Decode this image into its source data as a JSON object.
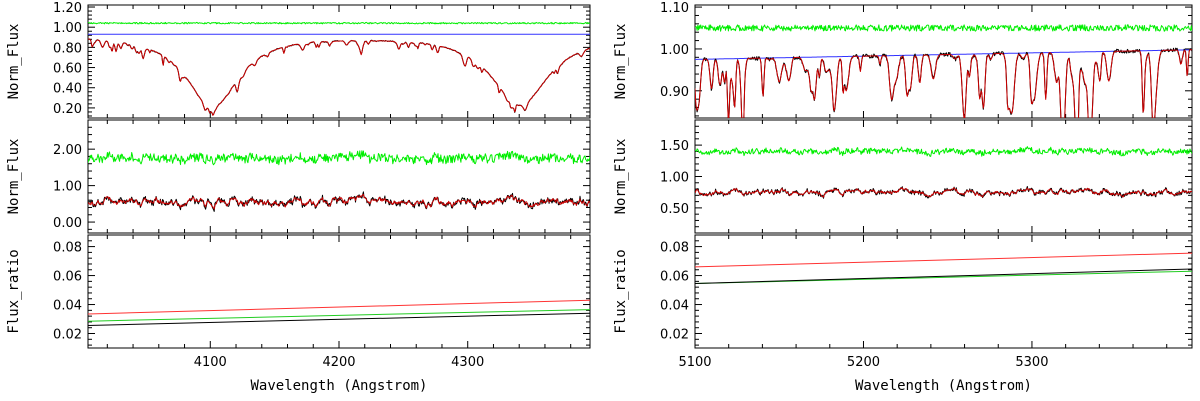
{
  "colors": {
    "observed": "#000000",
    "model": "#cc0000",
    "residual": "#00ee00",
    "continuum": "#3333ff",
    "flux_ratio_red": "#ff3333",
    "flux_ratio_green": "#22cc22",
    "flux_ratio_black": "#000000"
  },
  "chart_data": [
    {
      "type": "line",
      "id": "left-top",
      "xlim": [
        4005,
        4395
      ],
      "ylim": [
        0.1,
        1.22
      ],
      "yticks": [
        0.2,
        0.4,
        0.6,
        0.8,
        1.0,
        1.2
      ],
      "ytick_labels": [
        "0.20",
        "0.40",
        "0.60",
        "0.80",
        "1.00",
        "1.20"
      ],
      "xticks": [
        4100,
        4200,
        4300
      ],
      "ylabel": "Norm_Flux",
      "features": {
        "continuum_level": 0.93,
        "residual_level": 1.04,
        "balmer_lines": [
          {
            "center": 4101.7,
            "depth": 0.72,
            "width": 22
          },
          {
            "center": 4340.5,
            "depth": 0.7,
            "width": 24
          }
        ],
        "metal_line_depth": 0.07
      },
      "series": [
        {
          "name": "observed spectrum",
          "color": "#000000"
        },
        {
          "name": "model spectrum",
          "color": "#cc0000"
        },
        {
          "name": "continuum",
          "color": "#3333ff"
        },
        {
          "name": "residual (offset)",
          "color": "#00ee00"
        }
      ]
    },
    {
      "type": "line",
      "id": "left-mid",
      "xlim": [
        4005,
        4395
      ],
      "ylim": [
        -0.3,
        2.8
      ],
      "yticks": [
        0.0,
        1.0,
        2.0
      ],
      "ytick_labels": [
        "0.00",
        "1.00",
        "2.00"
      ],
      "xticks": [
        4100,
        4200,
        4300
      ],
      "ylabel": "Norm_Flux",
      "features": {
        "observed_level": 0.55,
        "noise": 0.18,
        "residual_level": 1.75,
        "residual_noise": 0.16
      },
      "series": [
        {
          "name": "observed secondary",
          "color": "#000000"
        },
        {
          "name": "model secondary",
          "color": "#cc0000"
        },
        {
          "name": "residual (offset)",
          "color": "#00ee00"
        }
      ]
    },
    {
      "type": "line",
      "id": "left-bot",
      "xlim": [
        4005,
        4395
      ],
      "ylim": [
        0.01,
        0.088
      ],
      "yticks": [
        0.02,
        0.04,
        0.06,
        0.08
      ],
      "ytick_labels": [
        "0.02",
        "0.04",
        "0.06",
        "0.08"
      ],
      "xticks": [
        4100,
        4200,
        4300
      ],
      "xtick_labels": [
        "4100",
        "4200",
        "4300"
      ],
      "ylabel": "Flux_ratio",
      "xlabel": "Wavelength (Angstrom)",
      "series": [
        {
          "name": "ratio red",
          "color": "#ff3333",
          "x": [
            4005,
            4395
          ],
          "y": [
            0.0335,
            0.043
          ]
        },
        {
          "name": "ratio green",
          "color": "#22cc22",
          "x": [
            4005,
            4395
          ],
          "y": [
            0.0285,
            0.0365
          ]
        },
        {
          "name": "ratio black",
          "color": "#000000",
          "x": [
            4005,
            4395
          ],
          "y": [
            0.0255,
            0.034
          ]
        }
      ]
    },
    {
      "type": "line",
      "id": "right-top",
      "xlim": [
        5100,
        5395
      ],
      "ylim": [
        0.835,
        1.105
      ],
      "yticks": [
        0.9,
        1.0,
        1.1
      ],
      "ytick_labels": [
        "0.90",
        "1.00",
        "1.10"
      ],
      "extra_yticks": [
        0.9
      ],
      "xticks": [
        5100,
        5200,
        5300
      ],
      "ylabel": "Norm_Flux",
      "features": {
        "continuum_start": 0.975,
        "continuum_end": 0.998,
        "residual_level": 1.05,
        "metal_line_depth": 0.12
      },
      "series": [
        {
          "name": "observed spectrum",
          "color": "#000000"
        },
        {
          "name": "model spectrum",
          "color": "#cc0000"
        },
        {
          "name": "continuum",
          "color": "#3333ff"
        },
        {
          "name": "residual (offset)",
          "color": "#00ee00"
        }
      ]
    },
    {
      "type": "line",
      "id": "right-mid",
      "xlim": [
        5100,
        5395
      ],
      "ylim": [
        0.1,
        1.9
      ],
      "yticks": [
        0.5,
        1.0,
        1.5
      ],
      "ytick_labels": [
        "0.50",
        "1.00",
        "1.50"
      ],
      "xticks": [
        5100,
        5200,
        5300
      ],
      "ylabel": "Norm_Flux",
      "features": {
        "observed_level": 0.75,
        "noise": 0.07,
        "residual_level": 1.4,
        "residual_noise": 0.06
      },
      "series": [
        {
          "name": "observed secondary",
          "color": "#000000"
        },
        {
          "name": "model secondary",
          "color": "#cc0000"
        },
        {
          "name": "residual (offset)",
          "color": "#00ee00"
        }
      ]
    },
    {
      "type": "line",
      "id": "right-bot",
      "xlim": [
        5100,
        5395
      ],
      "ylim": [
        0.01,
        0.088
      ],
      "yticks": [
        0.02,
        0.04,
        0.06,
        0.08
      ],
      "ytick_labels": [
        "0.02",
        "0.04",
        "0.06",
        "0.08"
      ],
      "xticks": [
        5100,
        5200,
        5300
      ],
      "xtick_labels": [
        "5100",
        "5200",
        "5300"
      ],
      "ylabel": "Flux_ratio",
      "xlabel": "Wavelength (Angstrom)",
      "series": [
        {
          "name": "ratio red",
          "color": "#ff3333",
          "x": [
            5100,
            5395
          ],
          "y": [
            0.066,
            0.0755
          ]
        },
        {
          "name": "ratio green",
          "color": "#22cc22",
          "x": [
            5100,
            5395
          ],
          "y": [
            0.0545,
            0.063
          ]
        },
        {
          "name": "ratio black",
          "color": "#000000",
          "x": [
            5100,
            5395
          ],
          "y": [
            0.0545,
            0.0645
          ]
        }
      ]
    }
  ]
}
